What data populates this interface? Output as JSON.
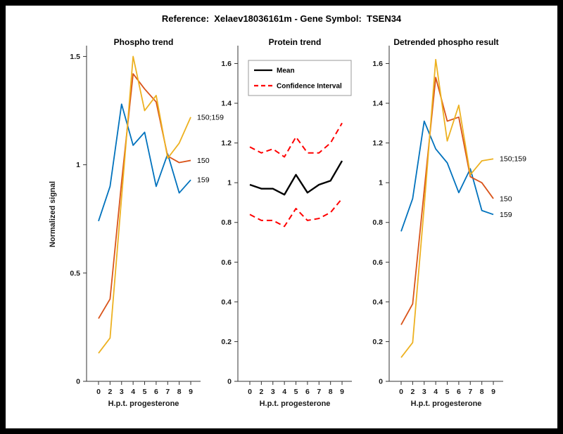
{
  "figure": {
    "title": "Reference:  Xelaev18036161m - Gene Symbol:  TSEN34"
  },
  "colors": {
    "blue": "#0072BD",
    "orange": "#D95319",
    "yellow": "#EDB120",
    "mean_black": "#000000",
    "ci_red": "#FF0000",
    "axis": "#333333"
  },
  "chart_data": [
    {
      "type": "line",
      "title": "Phospho trend",
      "xlabel": "H.p.t. progesterone",
      "ylabel": "Normalized signal",
      "categories": [
        "0",
        "2",
        "3",
        "4",
        "5",
        "6",
        "7",
        "8",
        "9"
      ],
      "ylim": [
        0,
        1.55
      ],
      "grid": false,
      "legend_position": "none",
      "end_labels": true,
      "y_ticks": [
        {
          "v": 0,
          "label": "0"
        },
        {
          "v": 0.5,
          "label": "0.5"
        },
        {
          "v": 1,
          "label": "1"
        },
        {
          "v": 1.5,
          "label": "1.5"
        }
      ],
      "series": [
        {
          "name": "159",
          "color_key": "blue",
          "style": "solid",
          "values": [
            0.74,
            0.9,
            1.28,
            1.09,
            1.15,
            0.9,
            1.05,
            0.87,
            0.93
          ]
        },
        {
          "name": "150",
          "color_key": "orange",
          "style": "solid",
          "values": [
            0.29,
            0.38,
            0.92,
            1.42,
            1.35,
            1.29,
            1.04,
            1.01,
            1.02
          ]
        },
        {
          "name": "150;159",
          "color_key": "yellow",
          "style": "solid",
          "values": [
            0.13,
            0.2,
            0.85,
            1.5,
            1.25,
            1.32,
            1.03,
            1.1,
            1.22
          ]
        }
      ]
    },
    {
      "type": "line",
      "title": "Protein trend",
      "xlabel": "H.p.t. progesterone",
      "ylabel": "",
      "categories": [
        "0",
        "2",
        "3",
        "4",
        "5",
        "6",
        "7",
        "8",
        "9"
      ],
      "ylim": [
        0,
        1.69
      ],
      "grid": false,
      "legend_position": "top-left",
      "end_labels": false,
      "y_ticks": [
        {
          "v": 0,
          "label": "0"
        },
        {
          "v": 0.2,
          "label": "0.2"
        },
        {
          "v": 0.4,
          "label": "0.4"
        },
        {
          "v": 0.6,
          "label": "0.6"
        },
        {
          "v": 0.8,
          "label": "0.8"
        },
        {
          "v": 1,
          "label": "1"
        },
        {
          "v": 1.2,
          "label": "1.2"
        },
        {
          "v": 1.4,
          "label": "1.4"
        },
        {
          "v": 1.6,
          "label": "1.6"
        }
      ],
      "legend": {
        "items": [
          {
            "label": "Mean",
            "color_key": "mean_black",
            "style": "solid"
          },
          {
            "label": "Confidence Interval",
            "color_key": "ci_red",
            "style": "dashed"
          }
        ]
      },
      "series": [
        {
          "name": "Mean",
          "color_key": "mean_black",
          "style": "solid",
          "width": 2.4,
          "values": [
            0.99,
            0.97,
            0.97,
            0.94,
            1.04,
            0.95,
            0.99,
            1.01,
            1.11
          ]
        },
        {
          "name": "Confidence Interval upper",
          "color_key": "ci_red",
          "style": "dashed",
          "width": 2,
          "values": [
            1.18,
            1.15,
            1.17,
            1.13,
            1.23,
            1.15,
            1.15,
            1.2,
            1.3
          ]
        },
        {
          "name": "Confidence Interval lower",
          "color_key": "ci_red",
          "style": "dashed",
          "width": 2,
          "values": [
            0.84,
            0.81,
            0.81,
            0.78,
            0.87,
            0.81,
            0.82,
            0.85,
            0.92
          ]
        }
      ]
    },
    {
      "type": "line",
      "title": "Detrended phospho result",
      "xlabel": "H.p.t. progesterone",
      "ylabel": "",
      "categories": [
        "0",
        "2",
        "3",
        "4",
        "5",
        "6",
        "7",
        "8",
        "9"
      ],
      "ylim": [
        0,
        1.69
      ],
      "grid": false,
      "legend_position": "none",
      "end_labels": true,
      "y_ticks": [
        {
          "v": 0,
          "label": "0"
        },
        {
          "v": 0.2,
          "label": "0.2"
        },
        {
          "v": 0.4,
          "label": "0.4"
        },
        {
          "v": 0.6,
          "label": "0.6"
        },
        {
          "v": 0.8,
          "label": "0.8"
        },
        {
          "v": 1,
          "label": "1"
        },
        {
          "v": 1.2,
          "label": "1.2"
        },
        {
          "v": 1.4,
          "label": "1.4"
        },
        {
          "v": 1.6,
          "label": "1.6"
        }
      ],
      "series": [
        {
          "name": "159",
          "color_key": "blue",
          "style": "solid",
          "values": [
            0.755,
            0.92,
            1.31,
            1.17,
            1.1,
            0.95,
            1.07,
            0.86,
            0.84
          ]
        },
        {
          "name": "150",
          "color_key": "orange",
          "style": "solid",
          "values": [
            0.285,
            0.39,
            0.96,
            1.53,
            1.31,
            1.33,
            1.03,
            1.0,
            0.92
          ]
        },
        {
          "name": "150;159",
          "color_key": "yellow",
          "style": "solid",
          "values": [
            0.12,
            0.195,
            0.88,
            1.62,
            1.21,
            1.39,
            1.04,
            1.11,
            1.12
          ]
        }
      ]
    }
  ]
}
